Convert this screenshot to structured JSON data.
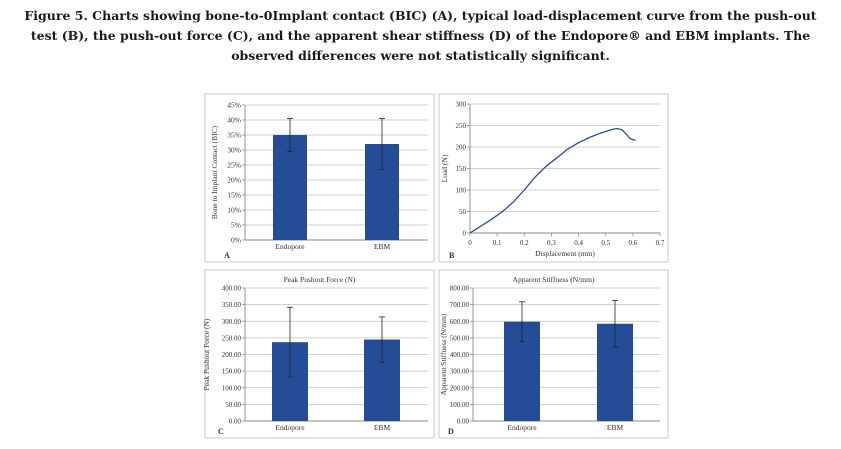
{
  "caption": "Figure 5. Charts showing bone-to-0Implant contact (BIC) (A), typical load-displacement curve from the push-out test (B), the push-out force (C), and the apparent shear stiffness (D) of the Endopore® and EBM implants. The observed differences were not statistically significant.",
  "colors": {
    "bar": "#254c96",
    "line": "#2b4f8e",
    "grid": "#bfbfbf",
    "frame": "#c9c9c9",
    "axis": "#8a8a8a"
  },
  "chart_data": [
    {
      "panel": "A",
      "type": "bar",
      "title": "",
      "ylabel": "Bone to Implant Contact (BIC)",
      "categories": [
        "Endopore",
        "EBM"
      ],
      "values": [
        0.35,
        0.32
      ],
      "errors": [
        0.055,
        0.085
      ],
      "ylim": [
        0,
        0.45
      ],
      "yticks": [
        "0%",
        "5%",
        "10%",
        "15%",
        "20%",
        "25%",
        "30%",
        "35%",
        "40%",
        "45%"
      ],
      "grid": true
    },
    {
      "panel": "B",
      "type": "line",
      "title": "",
      "xlabel": "Displacement (mm)",
      "ylabel": "Load (N)",
      "xlim": [
        0,
        0.7
      ],
      "ylim": [
        0,
        300
      ],
      "xticks": [
        "0",
        "0.1",
        "0.2",
        "0.3",
        "0.4",
        "0.5",
        "0.6",
        "0.7"
      ],
      "yticks": [
        "0",
        "50",
        "100",
        "150",
        "200",
        "250",
        "300"
      ],
      "x": [
        0,
        0.02,
        0.05,
        0.08,
        0.12,
        0.16,
        0.2,
        0.24,
        0.28,
        0.32,
        0.36,
        0.4,
        0.44,
        0.48,
        0.5,
        0.52,
        0.54,
        0.56,
        0.575,
        0.59,
        0.6,
        0.61
      ],
      "y": [
        0,
        8,
        20,
        32,
        50,
        72,
        100,
        130,
        155,
        175,
        195,
        210,
        222,
        232,
        236,
        240,
        243,
        240,
        230,
        220,
        217,
        216
      ],
      "grid": true
    },
    {
      "panel": "C",
      "type": "bar",
      "title": "Peak Pushout Force (N)",
      "ylabel": "Peak Pushout Force (N)",
      "categories": [
        "Endopore",
        "EBM"
      ],
      "values": [
        237,
        245
      ],
      "errors": [
        105,
        68
      ],
      "ylim": [
        0,
        400
      ],
      "yticks": [
        "0.00",
        "50.00",
        "100.00",
        "150.00",
        "200.00",
        "250.00",
        "300.00",
        "350.00",
        "400.00"
      ],
      "grid": true
    },
    {
      "panel": "D",
      "type": "bar",
      "title": "Apparent Stiffness (N/mm)",
      "ylabel": "Apparent Stiffness (N/mm)",
      "categories": [
        "Endopore",
        "EBM"
      ],
      "values": [
        597,
        585
      ],
      "errors": [
        120,
        140
      ],
      "ylim": [
        0,
        800
      ],
      "yticks": [
        "0.00",
        "100.00",
        "200.00",
        "300.00",
        "400.00",
        "500.00",
        "600.00",
        "700.00",
        "800.00"
      ],
      "grid": true
    }
  ]
}
